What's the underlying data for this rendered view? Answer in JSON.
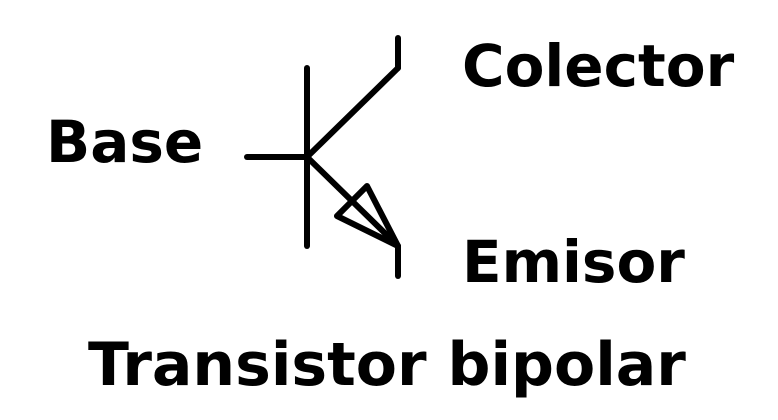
{
  "labels": {
    "base": "Base",
    "collector": "Colector",
    "emitter": "Emisor",
    "caption": "Transistor bipolar"
  },
  "colors": {
    "stroke": "#000000",
    "background": "#ffffff"
  }
}
